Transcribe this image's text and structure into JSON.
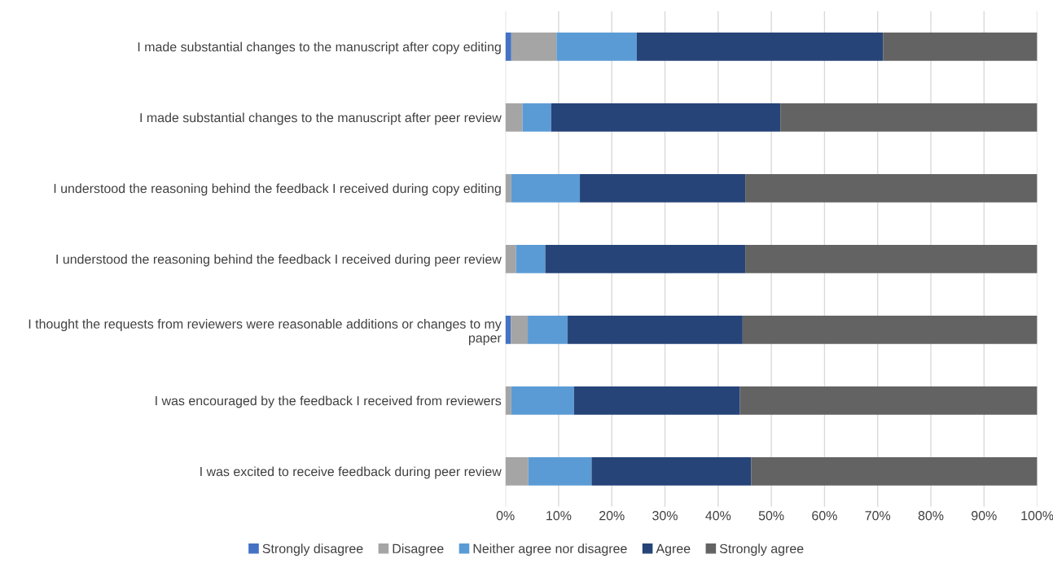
{
  "chart_data": {
    "type": "bar",
    "orientation": "horizontal",
    "stacked": true,
    "categories": [
      "I made substantial changes to the manuscript after copy editing",
      "I made substantial changes to the manuscript after peer review",
      "I understood the reasoning behind the feedback I received during copy editing",
      "I understood the reasoning behind the feedback I received during peer review",
      "I thought the requests from reviewers were reasonable additions or changes to my\npaper",
      "I was encouraged by the feedback I received from reviewers",
      "I was excited to receive feedback during peer review"
    ],
    "series": [
      {
        "name": "Strongly disagree",
        "color": "#4472c4",
        "values": [
          1.1,
          0,
          0,
          0,
          1.0,
          0,
          0
        ]
      },
      {
        "name": "Disagree",
        "color": "#a5a5a5",
        "values": [
          8.5,
          3.2,
          1.1,
          2.0,
          3.2,
          1.1,
          4.3
        ]
      },
      {
        "name": "Neither agree nor disagree",
        "color": "#5b9bd5",
        "values": [
          15.1,
          5.4,
          12.9,
          5.5,
          7.5,
          11.8,
          11.9
        ]
      },
      {
        "name": "Agree",
        "color": "#264478",
        "values": [
          46.3,
          43.1,
          31.1,
          37.6,
          32.9,
          31.2,
          30.0
        ]
      },
      {
        "name": "Strongly agree",
        "color": "#636363",
        "values": [
          29.0,
          48.3,
          54.9,
          54.9,
          55.4,
          55.9,
          53.8
        ]
      }
    ],
    "xlim": [
      0,
      100
    ],
    "xticks": [
      {
        "value": 0,
        "label": "0%"
      },
      {
        "value": 10,
        "label": "10%"
      },
      {
        "value": 20,
        "label": "20%"
      },
      {
        "value": 30,
        "label": "30%"
      },
      {
        "value": 40,
        "label": "40%"
      },
      {
        "value": 50,
        "label": "50%"
      },
      {
        "value": 60,
        "label": "60%"
      },
      {
        "value": 70,
        "label": "70%"
      },
      {
        "value": 80,
        "label": "80%"
      },
      {
        "value": 90,
        "label": "90%"
      },
      {
        "value": 100,
        "label": "100%"
      }
    ],
    "grid": "x",
    "legend": "bottom"
  }
}
